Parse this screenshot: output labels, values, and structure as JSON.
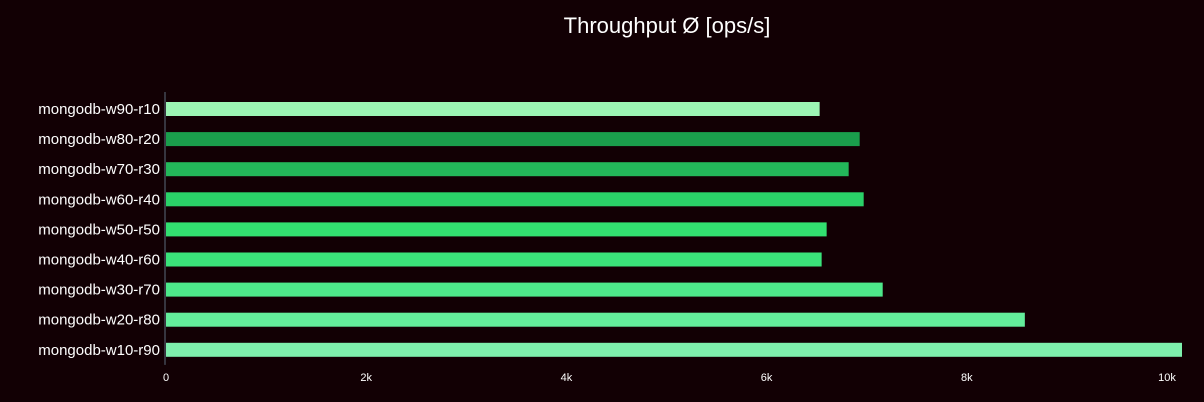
{
  "chart_data": {
    "type": "bar",
    "orientation": "horizontal",
    "title": "Throughput Ø [ops/s]",
    "xlabel": "",
    "ylabel": "",
    "categories": [
      "mongodb-w90-r10",
      "mongodb-w80-r20",
      "mongodb-w70-r30",
      "mongodb-w60-r40",
      "mongodb-w50-r50",
      "mongodb-w40-r60",
      "mongodb-w30-r70",
      "mongodb-w20-r80",
      "mongodb-w10-r90"
    ],
    "values": [
      6530,
      6930,
      6820,
      6970,
      6600,
      6550,
      7160,
      8580,
      10150
    ],
    "colors": [
      "#9cf5b4",
      "#1a9e4c",
      "#23b75a",
      "#2ad168",
      "#32e070",
      "#3ae37a",
      "#4de88a",
      "#63ed9b",
      "#7ef0ad"
    ],
    "xlim": [
      0,
      10150
    ],
    "xticks": [
      0,
      2000,
      4000,
      6000,
      8000,
      10000
    ],
    "xtick_labels": [
      "0",
      "2k",
      "4k",
      "6k",
      "8k",
      "10k"
    ],
    "grid": false,
    "legend": "none",
    "background": "#120004",
    "text_color": "#ffffff",
    "axis_color": "#5a6a7a"
  }
}
